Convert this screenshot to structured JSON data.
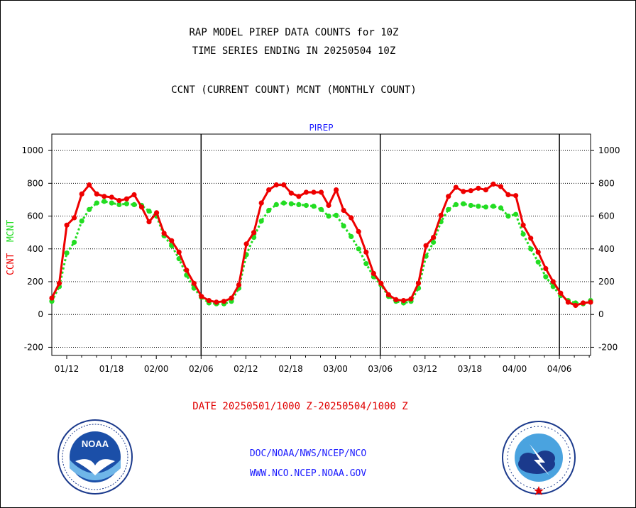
{
  "header": {
    "line1": "RAP MODEL PIREP DATA COUNTS for 10Z",
    "line2": "TIME SERIES ENDING IN 20250504 10Z",
    "line3": "CCNT (CURRENT COUNT) MCNT (MONTHLY COUNT)"
  },
  "footer": {
    "date_range": "DATE 20250501/1000 Z-20250504/1000 Z",
    "org": "DOC/NOAA/NWS/NCEP/NCO",
    "url": "WWW.NCO.NCEP.NOAA.GOV"
  },
  "logos": {
    "left": {
      "name": "noaa-logo",
      "text": "NOAA"
    },
    "right": {
      "name": "nws-logo"
    }
  },
  "chart_data": {
    "type": "line",
    "title": "PIREP",
    "ylabel_left": [
      "CCNT",
      "MCNT"
    ],
    "ylim": [
      -250,
      1100
    ],
    "yticks": [
      -200,
      0,
      200,
      400,
      600,
      800,
      1000
    ],
    "x_ticks": [
      "01/12",
      "01/18",
      "02/00",
      "02/06",
      "02/12",
      "02/18",
      "03/00",
      "03/06",
      "03/12",
      "03/18",
      "04/00",
      "04/06"
    ],
    "day_boundaries": [
      "02/06",
      "03/06",
      "04/06"
    ],
    "grid": "horizontal dotted",
    "colors": {
      "ccnt": "#ee0000",
      "mcnt": "#22dd22",
      "title": "#1a1aff"
    },
    "series": [
      {
        "name": "CCNT",
        "values": [
          100,
          190,
          545,
          590,
          735,
          790,
          735,
          720,
          715,
          695,
          705,
          730,
          655,
          565,
          620,
          495,
          450,
          380,
          270,
          190,
          110,
          85,
          75,
          80,
          100,
          180,
          430,
          500,
          680,
          760,
          790,
          790,
          740,
          720,
          745,
          745,
          745,
          665,
          760,
          635,
          590,
          505,
          380,
          250,
          190,
          120,
          90,
          85,
          95,
          190,
          420,
          470,
          605,
          720,
          775,
          750,
          755,
          770,
          760,
          795,
          780,
          730,
          725,
          545,
          465,
          380,
          280,
          200,
          130,
          75,
          55,
          70,
          75
        ]
      },
      {
        "name": "MCNT",
        "values": [
          80,
          170,
          375,
          440,
          570,
          640,
          680,
          690,
          680,
          670,
          675,
          670,
          665,
          630,
          600,
          480,
          420,
          340,
          240,
          160,
          105,
          70,
          65,
          65,
          80,
          160,
          365,
          470,
          570,
          635,
          670,
          680,
          675,
          670,
          665,
          660,
          640,
          600,
          605,
          540,
          475,
          400,
          310,
          230,
          180,
          110,
          80,
          70,
          80,
          160,
          355,
          440,
          565,
          640,
          670,
          675,
          665,
          660,
          655,
          660,
          650,
          600,
          610,
          490,
          400,
          320,
          230,
          170,
          115,
          85,
          70,
          65,
          85
        ]
      }
    ]
  }
}
